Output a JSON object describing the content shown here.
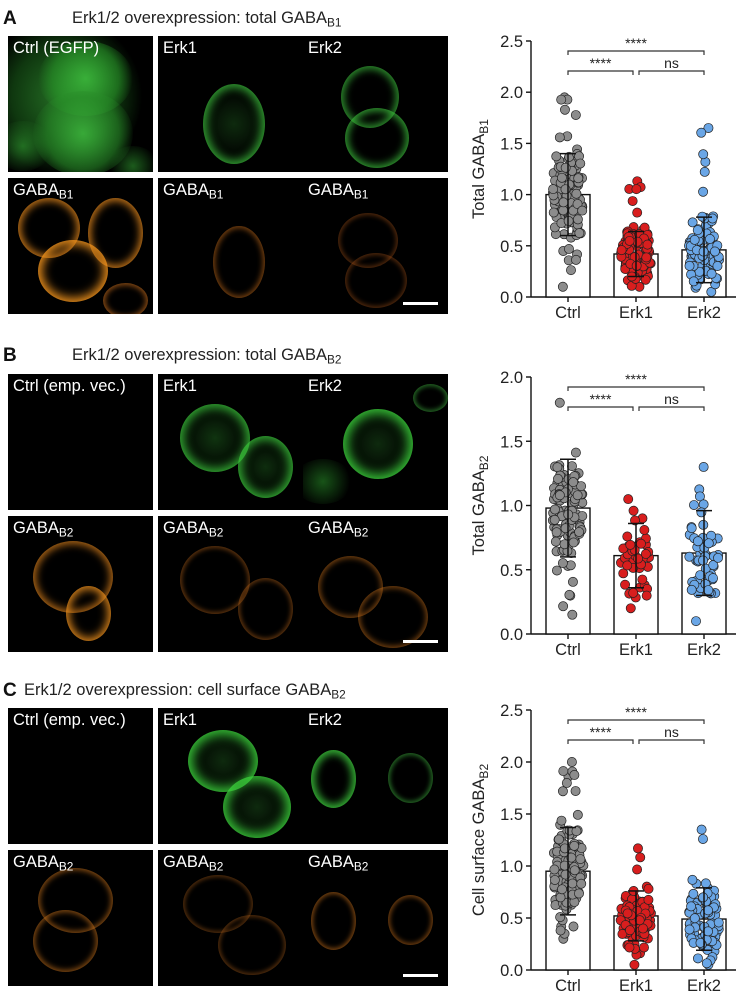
{
  "figure": {
    "panels": [
      {
        "letter": "A",
        "title_main": "Erk1/2 overexpression: total GABA",
        "title_sub": "B1",
        "ctrl_label": "Ctrl (EGFP)",
        "erk1_label": "Erk1",
        "erk2_label": "Erk2",
        "receptor_main": "GABA",
        "receptor_sub": "B1"
      },
      {
        "letter": "B",
        "title_main": "Erk1/2 overexpression: total GABA",
        "title_sub": "B2",
        "ctrl_label": "Ctrl (emp. vec.)",
        "erk1_label": "Erk1",
        "erk2_label": "Erk2",
        "receptor_main": "GABA",
        "receptor_sub": "B2"
      },
      {
        "letter": "C",
        "title_main": "Erk1/2 overexpression: cell surface GABA",
        "title_sub": "B2",
        "ctrl_label": "Ctrl (emp. vec.)",
        "erk1_label": "Erk1",
        "erk2_label": "Erk2",
        "receptor_main": "GABA",
        "receptor_sub": "B2"
      }
    ]
  },
  "chart_data": [
    {
      "type": "bar",
      "categories": [
        "Ctrl",
        "Erk1",
        "Erk2"
      ],
      "values": [
        1.0,
        0.42,
        0.46
      ],
      "sd": [
        0.4,
        0.22,
        0.32
      ],
      "ylabel_main": "Total GABA",
      "ylabel_sub": "B1",
      "ylim": [
        0,
        2.5
      ],
      "yticks": [
        "0.0",
        "0.5",
        "1.0",
        "1.5",
        "2.0",
        "2.5"
      ],
      "point_range": [
        [
          0.1,
          1.95
        ],
        [
          0.1,
          1.13
        ],
        [
          0.05,
          1.65
        ]
      ],
      "point_counts": [
        130,
        110,
        100
      ],
      "dot_colors": [
        "#8c8c8c",
        "#d81e1e",
        "#6aa6e6"
      ],
      "significance": [
        {
          "from": "Ctrl",
          "to": "Erk2",
          "label": "****"
        },
        {
          "from": "Ctrl",
          "to": "Erk1",
          "label": "****"
        },
        {
          "from": "Erk1",
          "to": "Erk2",
          "label": "ns"
        }
      ]
    },
    {
      "type": "bar",
      "categories": [
        "Ctrl",
        "Erk1",
        "Erk2"
      ],
      "values": [
        0.98,
        0.61,
        0.63
      ],
      "sd": [
        0.38,
        0.25,
        0.33
      ],
      "ylabel_main": "Total GABA",
      "ylabel_sub": "B2",
      "ylim": [
        0,
        2.0
      ],
      "yticks": [
        "0.0",
        "0.5",
        "1.0",
        "1.5",
        "2.0"
      ],
      "point_range": [
        [
          0.15,
          1.8
        ],
        [
          0.2,
          1.05
        ],
        [
          0.1,
          1.3
        ]
      ],
      "point_counts": [
        110,
        45,
        55
      ],
      "dot_colors": [
        "#8c8c8c",
        "#d81e1e",
        "#6aa6e6"
      ],
      "significance": [
        {
          "from": "Ctrl",
          "to": "Erk2",
          "label": "****"
        },
        {
          "from": "Ctrl",
          "to": "Erk1",
          "label": "****"
        },
        {
          "from": "Erk1",
          "to": "Erk2",
          "label": "ns"
        }
      ]
    },
    {
      "type": "bar",
      "categories": [
        "Ctrl",
        "Erk1",
        "Erk2"
      ],
      "values": [
        0.95,
        0.52,
        0.49
      ],
      "sd": [
        0.42,
        0.24,
        0.3
      ],
      "ylabel_main": "Cell surface GABA",
      "ylabel_sub": "B2",
      "ylim": [
        0,
        2.5
      ],
      "yticks": [
        "0.0",
        "0.5",
        "1.0",
        "1.5",
        "2.0",
        "2.5"
      ],
      "point_range": [
        [
          0.3,
          2.0
        ],
        [
          0.05,
          1.17
        ],
        [
          0.05,
          1.35
        ]
      ],
      "point_counts": [
        130,
        110,
        100
      ],
      "dot_colors": [
        "#8c8c8c",
        "#d81e1e",
        "#6aa6e6"
      ],
      "significance": [
        {
          "from": "Ctrl",
          "to": "Erk2",
          "label": "****"
        },
        {
          "from": "Ctrl",
          "to": "Erk1",
          "label": "****"
        },
        {
          "from": "Erk1",
          "to": "Erk2",
          "label": "ns"
        }
      ]
    }
  ]
}
